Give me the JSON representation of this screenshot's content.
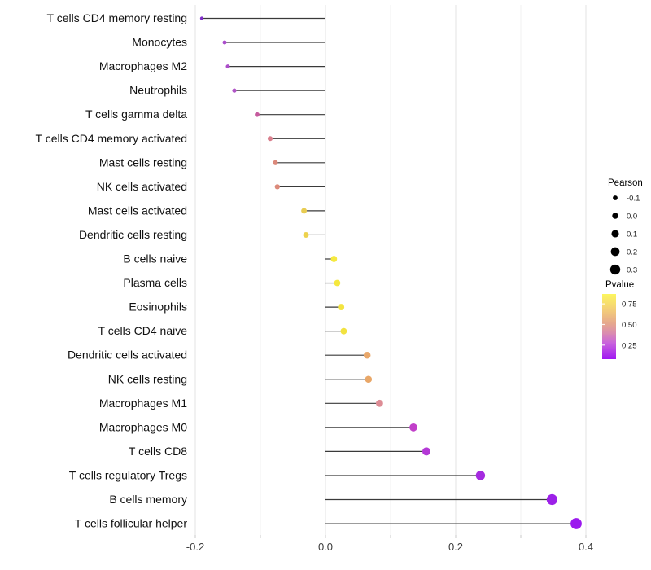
{
  "chart_data": {
    "type": "lollipop",
    "title": "",
    "xlabel": "",
    "ylabel": "",
    "x_domain": [
      -0.205,
      0.42
    ],
    "gridline_values": [
      -0.2,
      -0.1,
      0.0,
      0.1,
      0.2,
      0.3,
      0.4
    ],
    "major_gridline_values": [
      -0.2,
      0.0,
      0.2,
      0.4
    ],
    "x_tick_labels": [
      {
        "value": -0.2,
        "label": "-0.2"
      },
      {
        "value": 0.0,
        "label": "0.0"
      },
      {
        "value": 0.2,
        "label": "0.2"
      },
      {
        "value": 0.4,
        "label": "0.4"
      }
    ],
    "grid_on": true,
    "points": [
      {
        "label": "T cells CD4 memory resting",
        "pearson": -0.19,
        "color": "#7F2DC8"
      },
      {
        "label": "Monocytes",
        "pearson": -0.155,
        "color": "#AA4CCB"
      },
      {
        "label": "Macrophages M2",
        "pearson": -0.15,
        "color": "#AC4ECA"
      },
      {
        "label": "Neutrophils",
        "pearson": -0.14,
        "color": "#B054C6"
      },
      {
        "label": "T cells gamma delta",
        "pearson": -0.105,
        "color": "#C65B9E"
      },
      {
        "label": "T cells CD4 memory activated",
        "pearson": -0.085,
        "color": "#D97F8D"
      },
      {
        "label": "Mast cells resting",
        "pearson": -0.077,
        "color": "#DB897B"
      },
      {
        "label": "NK cells activated",
        "pearson": -0.074,
        "color": "#DC8A7A"
      },
      {
        "label": "Mast cells activated",
        "pearson": -0.033,
        "color": "#E8CC52"
      },
      {
        "label": "Dendritic cells resting",
        "pearson": -0.03,
        "color": "#EDD24D"
      },
      {
        "label": "B cells naive",
        "pearson": 0.013,
        "color": "#F5E93F"
      },
      {
        "label": "Plasma cells",
        "pearson": 0.018,
        "color": "#F5E83E"
      },
      {
        "label": "Eosinophils",
        "pearson": 0.024,
        "color": "#F3E440"
      },
      {
        "label": "T cells CD4 naive",
        "pearson": 0.028,
        "color": "#F2E23F"
      },
      {
        "label": "Dendritic cells activated",
        "pearson": 0.064,
        "color": "#E9A86B"
      },
      {
        "label": "NK cells resting",
        "pearson": 0.066,
        "color": "#E9A768"
      },
      {
        "label": "Macrophages M1",
        "pearson": 0.083,
        "color": "#DD8C95"
      },
      {
        "label": "Macrophages M0",
        "pearson": 0.135,
        "color": "#C13FC9"
      },
      {
        "label": "T cells CD8",
        "pearson": 0.155,
        "color": "#B438D6"
      },
      {
        "label": "T cells regulatory  Tregs",
        "pearson": 0.238,
        "color": "#A52BE0"
      },
      {
        "label": "B cells memory",
        "pearson": 0.348,
        "color": "#9C20E8"
      },
      {
        "label": "T cells follicular helper",
        "pearson": 0.385,
        "color": "#9B19EE"
      }
    ],
    "size_scale": {
      "pearson_domain": [
        -0.2,
        0.4
      ],
      "radius_px": [
        2.1,
        7.0
      ]
    },
    "stem_color": "#3a3a3a",
    "major_grid_color": "#e3e3e3",
    "minor_grid_color": "#f0f0f0",
    "tick_color": "#c8c8c8",
    "legend": {
      "pearson": {
        "title": "Pearson",
        "entries": [
          {
            "label": "-0.1",
            "value": -0.1
          },
          {
            "label": "0.0",
            "value": 0.0
          },
          {
            "label": "0.1",
            "value": 0.1
          },
          {
            "label": "0.2",
            "value": 0.2
          },
          {
            "label": "0.3",
            "value": 0.3
          }
        ],
        "dot_color": "#000000"
      },
      "pvalue": {
        "title": "Pvalue",
        "bar_value_top": 0.87,
        "bar_value_bottom": 0.08,
        "ticks": [
          {
            "label": "0.75",
            "value": 0.75
          },
          {
            "label": "0.50",
            "value": 0.5
          },
          {
            "label": "0.25",
            "value": 0.25
          }
        ],
        "gradient": [
          {
            "offset": 0,
            "color": "#FCF65E"
          },
          {
            "offset": 25,
            "color": "#F3CC79"
          },
          {
            "offset": 45,
            "color": "#E6A88D"
          },
          {
            "offset": 60,
            "color": "#DB8DAF"
          },
          {
            "offset": 75,
            "color": "#C964DC"
          },
          {
            "offset": 100,
            "color": "#A118F2"
          }
        ]
      }
    }
  }
}
